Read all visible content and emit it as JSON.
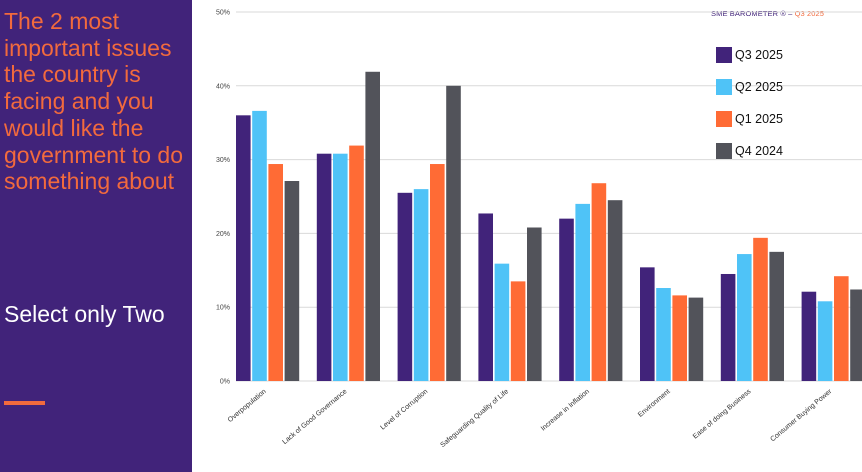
{
  "left_panel": {
    "title": "The 2 most important issues the country is facing and you would like the government to do something about",
    "subtitle": "Select only Two"
  },
  "brand": {
    "name": "SME BAROMETER ®",
    "separator": "–",
    "quarter": "Q3 2025"
  },
  "colors": {
    "panel_bg": "#41237a",
    "accent": "#f26a3d",
    "series": [
      "#41237a",
      "#4fc3f7",
      "#ff6b35",
      "#52535a"
    ]
  },
  "chart_data": {
    "type": "bar",
    "title": "",
    "xlabel": "",
    "ylabel": "",
    "ylim": [
      0,
      50
    ],
    "yticks": [
      "0%",
      "10%",
      "20%",
      "30%",
      "40%",
      "50%"
    ],
    "grid": true,
    "legend_position": "top-right",
    "categories": [
      "Overpopulation",
      "Lack of Good Governance",
      "Level of Corruption",
      "Safeguarding Quality of Life",
      "Increase in Inflation",
      "Environment",
      "Ease of doing Business",
      "Consumer Buying Power"
    ],
    "series": [
      {
        "name": "Q3 2025",
        "values": [
          36.0,
          30.8,
          25.5,
          22.7,
          22.0,
          15.4,
          14.5,
          12.1
        ]
      },
      {
        "name": "Q2 2025",
        "values": [
          36.6,
          30.8,
          26.0,
          15.9,
          24.0,
          12.6,
          17.2,
          10.8
        ]
      },
      {
        "name": "Q1 2025",
        "values": [
          29.4,
          31.9,
          29.4,
          13.5,
          26.8,
          11.6,
          19.4,
          14.2
        ]
      },
      {
        "name": "Q4 2024",
        "values": [
          27.1,
          41.9,
          40.0,
          20.8,
          24.5,
          11.3,
          17.5,
          12.4
        ]
      }
    ]
  }
}
